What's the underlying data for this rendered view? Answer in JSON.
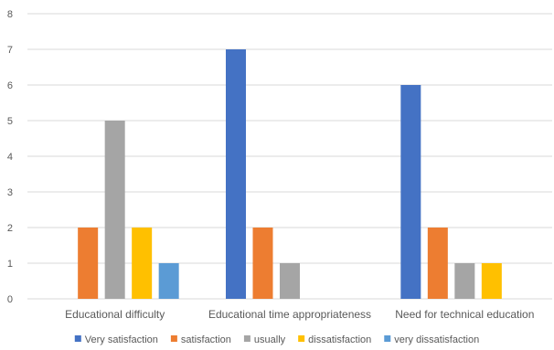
{
  "chart_data": {
    "type": "bar",
    "categories": [
      "Educational difficulty",
      "Educational time appropriateness",
      "Need for technical education"
    ],
    "series": [
      {
        "name": "Very satisfaction",
        "color": "#4472C4",
        "values": [
          0,
          7,
          6
        ]
      },
      {
        "name": "satisfaction",
        "color": "#ED7D31",
        "values": [
          2,
          2,
          2
        ]
      },
      {
        "name": "usually",
        "color": "#A5A5A5",
        "values": [
          5,
          1,
          1
        ]
      },
      {
        "name": "dissatisfaction",
        "color": "#FFC000",
        "values": [
          2,
          0,
          1
        ]
      },
      {
        "name": "very dissatisfaction",
        "color": "#5B9BD5",
        "values": [
          1,
          0,
          0
        ]
      }
    ],
    "ylim": [
      0,
      8
    ],
    "yticks": [
      0,
      1,
      2,
      3,
      4,
      5,
      6,
      7,
      8
    ],
    "grid": true,
    "legend_position": "bottom"
  },
  "colors": {
    "grid": "#d9d9d9",
    "axis_text": "#595959"
  }
}
